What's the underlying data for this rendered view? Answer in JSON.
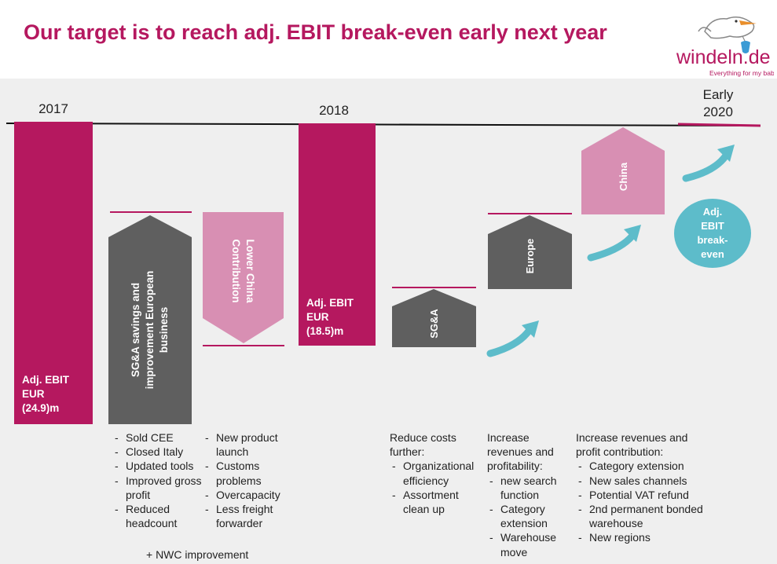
{
  "title": "Our target is to reach adj. EBIT break-even early next year",
  "logo": {
    "brand": "windeln.de",
    "tagline": "Everything for my baby"
  },
  "colors": {
    "magenta": "#b5185f",
    "pink": "#d88fb3",
    "gray": "#5f5f5f",
    "teal": "#5dbcca",
    "background": "#efefef"
  },
  "years": {
    "y2017": "2017",
    "y2018": "2018",
    "early": "Early",
    "y2020": "2020"
  },
  "bars": {
    "ebit2017": {
      "line1": "Adj. EBIT",
      "line2": "EUR",
      "line3": "(24.9)m"
    },
    "sga_savings": {
      "line1": "SG&A savings and",
      "line2": "improvement European",
      "line3": "business"
    },
    "lower_china": {
      "line1": "Lower China",
      "line2": "Contribution"
    },
    "ebit2018": {
      "line1": "Adj. EBIT",
      "line2": "EUR",
      "line3": "(18.5)m"
    },
    "sga": {
      "label": "SG&A"
    },
    "europe": {
      "label": "Europe"
    },
    "china": {
      "label": "China"
    },
    "breakeven": {
      "line1": "Adj.",
      "line2": "EBIT",
      "line3": "break-",
      "line4": "even"
    }
  },
  "chart_data": {
    "type": "bar",
    "subtype": "waterfall",
    "unit": "EUR m",
    "categories": [
      "2017",
      "SG&A savings and improvement European business",
      "Lower China Contribution",
      "2018",
      "SG&A",
      "Europe",
      "China",
      "Early 2020"
    ],
    "values": [
      -24.9,
      null,
      null,
      -18.5,
      null,
      null,
      null,
      0
    ],
    "annotations": [
      "Adj. EBIT EUR (24.9)m",
      "Adj. EBIT EUR (18.5)m",
      "Adj. EBIT break-even"
    ]
  },
  "notes": {
    "col1": {
      "items": [
        "Sold CEE",
        "Closed Italy",
        "Updated tools",
        "Improved gross profit",
        "Reduced headcount"
      ],
      "extra": "+ NWC improvement"
    },
    "col2": {
      "items": [
        "New product launch",
        "Customs problems",
        "Overcapacity",
        "Less freight forwarder"
      ]
    },
    "col3": {
      "head": "Reduce costs further:",
      "items": [
        "Organizational efficiency",
        "Assortment clean up"
      ]
    },
    "col4": {
      "head": "Increase revenues and profitability:",
      "items": [
        "new search function",
        "Category extension",
        "Warehouse move"
      ]
    },
    "col5": {
      "head": "Increase revenues and profit contribution:",
      "items": [
        "Category extension",
        "New sales channels",
        "Potential VAT refund",
        "2nd permanent bonded warehouse",
        "New regions"
      ]
    }
  }
}
